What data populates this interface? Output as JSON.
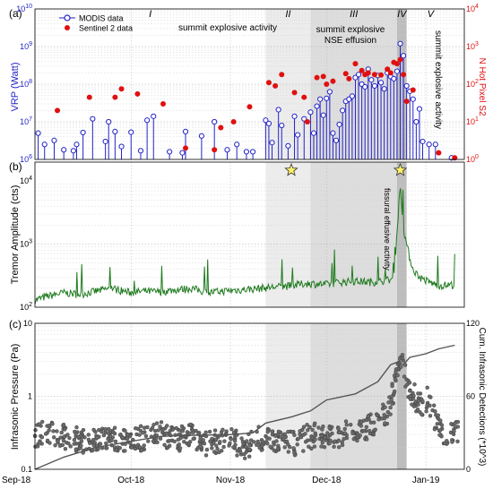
{
  "time_ticks": {
    "labels": [
      "Sep-18",
      "Oct-18",
      "Nov-18",
      "Dec-18",
      "Jan-19"
    ],
    "dates": [
      "2018-09-01",
      "2018-10-01",
      "2018-11-01",
      "2018-12-01",
      "2019-01-01"
    ]
  },
  "colors": {
    "modis": "#2323c8",
    "sentinel": "#e01010",
    "tremor": "#1f7a1f",
    "infrasonic_points": "#6b6b6b",
    "cumulative_line": "#555555",
    "phase_light": "#ececec",
    "phase_mid": "#dddddd",
    "phase_dark": "#bdbdbd",
    "star_fill": "#fff06a"
  },
  "phases": [
    {
      "label": "I",
      "start": "2018-09-01",
      "end": "2018-11-12"
    },
    {
      "label": "II",
      "start": "2018-11-12",
      "end": "2018-11-26"
    },
    {
      "label": "III",
      "start": "2018-11-26",
      "end": "2018-12-23"
    },
    {
      "label": "IV",
      "start": "2018-12-23",
      "end": "2018-12-26"
    },
    {
      "label": "V",
      "start": "2018-12-26",
      "end": "2019-01-10"
    }
  ],
  "stars": [
    "2018-11-20",
    "2018-12-24"
  ],
  "annotations": {
    "a1": "summit explosive activity",
    "a2_line1": "summit explosive",
    "a2_line2": "NSE effusion",
    "a3": "summit explosive activity",
    "b1": "fissural effusive activity"
  },
  "chart_data": [
    {
      "panel": "(a)",
      "type": "scatter",
      "ylabel": "VRP (Watt)",
      "ylabel_right": "N Hot Pixel S2",
      "yscale": "log",
      "ylim": [
        1000000,
        10000000000
      ],
      "ylim_right": [
        1,
        10000
      ],
      "yticks": [
        "10^6",
        "10^7",
        "10^8",
        "10^9",
        "10^10"
      ],
      "yticks_right": [
        "10^0",
        "10^1",
        "10^2",
        "10^3",
        "10^4"
      ],
      "legend_position": "top-left",
      "series": [
        {
          "name": "MODIS data",
          "marker": "open-circle-stem",
          "x": [
            "2018-09-02",
            "2018-09-04",
            "2018-09-07",
            "2018-09-10",
            "2018-09-13",
            "2018-09-14",
            "2018-09-16",
            "2018-09-19",
            "2018-09-23",
            "2018-09-24",
            "2018-09-26",
            "2018-09-28",
            "2018-10-01",
            "2018-10-04",
            "2018-10-06",
            "2018-10-08",
            "2018-10-13",
            "2018-10-17",
            "2018-10-18",
            "2018-10-23",
            "2018-10-27",
            "2018-10-31",
            "2018-11-03",
            "2018-11-06",
            "2018-11-08",
            "2018-11-12",
            "2018-11-13",
            "2018-11-14",
            "2018-11-16",
            "2018-11-17",
            "2018-11-19",
            "2018-11-21",
            "2018-11-22",
            "2018-11-24",
            "2018-11-26",
            "2018-11-27",
            "2018-11-28",
            "2018-11-29",
            "2018-11-30",
            "2018-12-01",
            "2018-12-02",
            "2018-12-03",
            "2018-12-04",
            "2018-12-05",
            "2018-12-06",
            "2018-12-07",
            "2018-12-08",
            "2018-12-09",
            "2018-12-10",
            "2018-12-11",
            "2018-12-12",
            "2018-12-13",
            "2018-12-14",
            "2018-12-15",
            "2018-12-16",
            "2018-12-17",
            "2018-12-18",
            "2018-12-19",
            "2018-12-20",
            "2018-12-21",
            "2018-12-22",
            "2018-12-23",
            "2018-12-24",
            "2018-12-25",
            "2018-12-26",
            "2018-12-27",
            "2018-12-28",
            "2018-12-29",
            "2018-12-30",
            "2018-12-31",
            "2019-01-02",
            "2019-01-04",
            "2019-01-09"
          ],
          "y": [
            5000000,
            2500000,
            3200000,
            1800000,
            1700000,
            2500000,
            5200000,
            12000000,
            3000000,
            10000000,
            5500000,
            2200000,
            5300000,
            1700000,
            11000000,
            14000000,
            1600000,
            1500000,
            5500000,
            4200000,
            10000000,
            1800000,
            2500000,
            1600000,
            1600000,
            11000000,
            9000000,
            2800000,
            21000000,
            8000000,
            2300000,
            14000000,
            4500000,
            12000000,
            18000000,
            5000000,
            26000000,
            40000000,
            15000000,
            42000000,
            63000000,
            5000000,
            3200000,
            8500000,
            20000000,
            35000000,
            40000000,
            48000000,
            150000000,
            180000000,
            100000000,
            85000000,
            250000000,
            130000000,
            90000000,
            170000000,
            110000000,
            75000000,
            200000000,
            160000000,
            140000000,
            220000000,
            1200000000,
            570000000,
            90000000,
            65000000,
            40000000,
            10000000,
            22000000,
            3000000,
            2500000,
            2500000,
            1100000
          ]
        },
        {
          "name": "Sentinel 2 data",
          "marker": "filled-circle",
          "axis": "right",
          "x": [
            "2018-09-08",
            "2018-09-18",
            "2018-09-26",
            "2018-09-28",
            "2018-10-03",
            "2018-10-11",
            "2018-10-18",
            "2018-10-27",
            "2018-10-29",
            "2018-11-02",
            "2018-11-07",
            "2018-11-13",
            "2018-11-15",
            "2018-11-17",
            "2018-11-21",
            "2018-11-24",
            "2018-11-25",
            "2018-11-28",
            "2018-11-30",
            "2018-12-01",
            "2018-12-03",
            "2018-12-07",
            "2018-12-08",
            "2018-12-10",
            "2018-12-12",
            "2018-12-13",
            "2018-12-14",
            "2018-12-16",
            "2018-12-18",
            "2018-12-20",
            "2018-12-21",
            "2018-12-22",
            "2018-12-23",
            "2018-12-24",
            "2018-12-25",
            "2018-12-26",
            "2018-12-28",
            "2019-01-05",
            "2019-01-10"
          ],
          "y": [
            20,
            45,
            45,
            75,
            55,
            30,
            2,
            1.8,
            7,
            10,
            25,
            110,
            90,
            180,
            60,
            45,
            10,
            150,
            160,
            100,
            120,
            190,
            140,
            350,
            230,
            180,
            200,
            180,
            175,
            250,
            200,
            380,
            350,
            450,
            180,
            35,
            70,
            1.5,
            1.1
          ]
        }
      ]
    },
    {
      "panel": "(b)",
      "type": "line",
      "ylabel": "Tremor Amplitude (cts)",
      "yscale": "log",
      "ylim": [
        100,
        20000
      ],
      "yticks": [
        "10^2",
        "10^3",
        "10^4"
      ],
      "series": [
        {
          "name": "",
          "x": [
            "2018-09-01",
            "2018-09-05",
            "2018-09-10",
            "2018-09-15",
            "2018-09-20",
            "2018-09-25",
            "2018-10-01",
            "2018-10-05",
            "2018-10-10",
            "2018-10-15",
            "2018-10-20",
            "2018-10-25",
            "2018-11-01",
            "2018-11-05",
            "2018-11-10",
            "2018-11-15",
            "2018-11-20",
            "2018-11-25",
            "2018-12-01",
            "2018-12-05",
            "2018-12-10",
            "2018-12-15",
            "2018-12-20",
            "2018-12-22",
            "2018-12-23",
            "2018-12-24",
            "2018-12-25",
            "2018-12-26",
            "2018-12-27",
            "2018-12-28",
            "2018-12-30",
            "2019-01-02",
            "2019-01-05",
            "2019-01-10"
          ],
          "y": [
            130,
            150,
            170,
            160,
            180,
            200,
            170,
            180,
            175,
            190,
            200,
            170,
            185,
            190,
            200,
            210,
            220,
            240,
            230,
            250,
            260,
            250,
            270,
            280,
            1500,
            9000,
            1800,
            1000,
            600,
            400,
            300,
            250,
            220,
            230
          ]
        }
      ]
    },
    {
      "panel": "(c)",
      "type": "scatter",
      "ylabel": "Infrasonic Pressure (Pa)",
      "ylabel_right": "Cum. Infrasonic Detections (*10^3)",
      "yscale": "log",
      "ylim": [
        0.1,
        10
      ],
      "ylim_right": [
        0,
        120
      ],
      "yticks": [
        "0.1",
        "1",
        "10"
      ],
      "yticks_right": [
        "0",
        "60",
        "120"
      ],
      "series": [
        {
          "name": "",
          "marker": "filled-circle",
          "x": [
            "2018-09-01",
            "2018-09-05",
            "2018-09-10",
            "2018-09-15",
            "2018-09-20",
            "2018-09-25",
            "2018-10-01",
            "2018-10-05",
            "2018-10-10",
            "2018-10-15",
            "2018-10-20",
            "2018-10-25",
            "2018-11-01",
            "2018-11-05",
            "2018-11-10",
            "2018-11-15",
            "2018-11-20",
            "2018-11-25",
            "2018-12-01",
            "2018-12-05",
            "2018-12-10",
            "2018-12-15",
            "2018-12-20",
            "2018-12-22",
            "2018-12-23",
            "2018-12-24",
            "2018-12-25",
            "2018-12-27",
            "2018-12-30",
            "2019-01-02",
            "2019-01-05",
            "2019-01-10"
          ],
          "y": [
            0.3,
            0.33,
            0.28,
            0.25,
            0.24,
            0.26,
            0.25,
            0.27,
            0.3,
            0.26,
            0.28,
            0.22,
            0.25,
            0.2,
            0.27,
            0.24,
            0.22,
            0.28,
            0.3,
            0.28,
            0.35,
            0.4,
            0.6,
            1.2,
            2.2,
            2.8,
            2.5,
            1.2,
            0.8,
            0.9,
            0.35,
            0.3
          ]
        },
        {
          "name": "",
          "type": "line",
          "axis": "right",
          "x": [
            "2018-09-01",
            "2018-09-10",
            "2018-09-20",
            "2018-10-01",
            "2018-10-10",
            "2018-10-20",
            "2018-11-01",
            "2018-11-08",
            "2018-11-12",
            "2018-11-20",
            "2018-11-26",
            "2018-12-01",
            "2018-12-10",
            "2018-12-17",
            "2018-12-21",
            "2018-12-23",
            "2018-12-25",
            "2018-12-27",
            "2019-01-01",
            "2019-01-05",
            "2019-01-10"
          ],
          "y": [
            0,
            10,
            18,
            23,
            27,
            28,
            28.5,
            30,
            38,
            43,
            48,
            57,
            62,
            72,
            86,
            88,
            86,
            92,
            95,
            99,
            102
          ]
        }
      ]
    }
  ]
}
